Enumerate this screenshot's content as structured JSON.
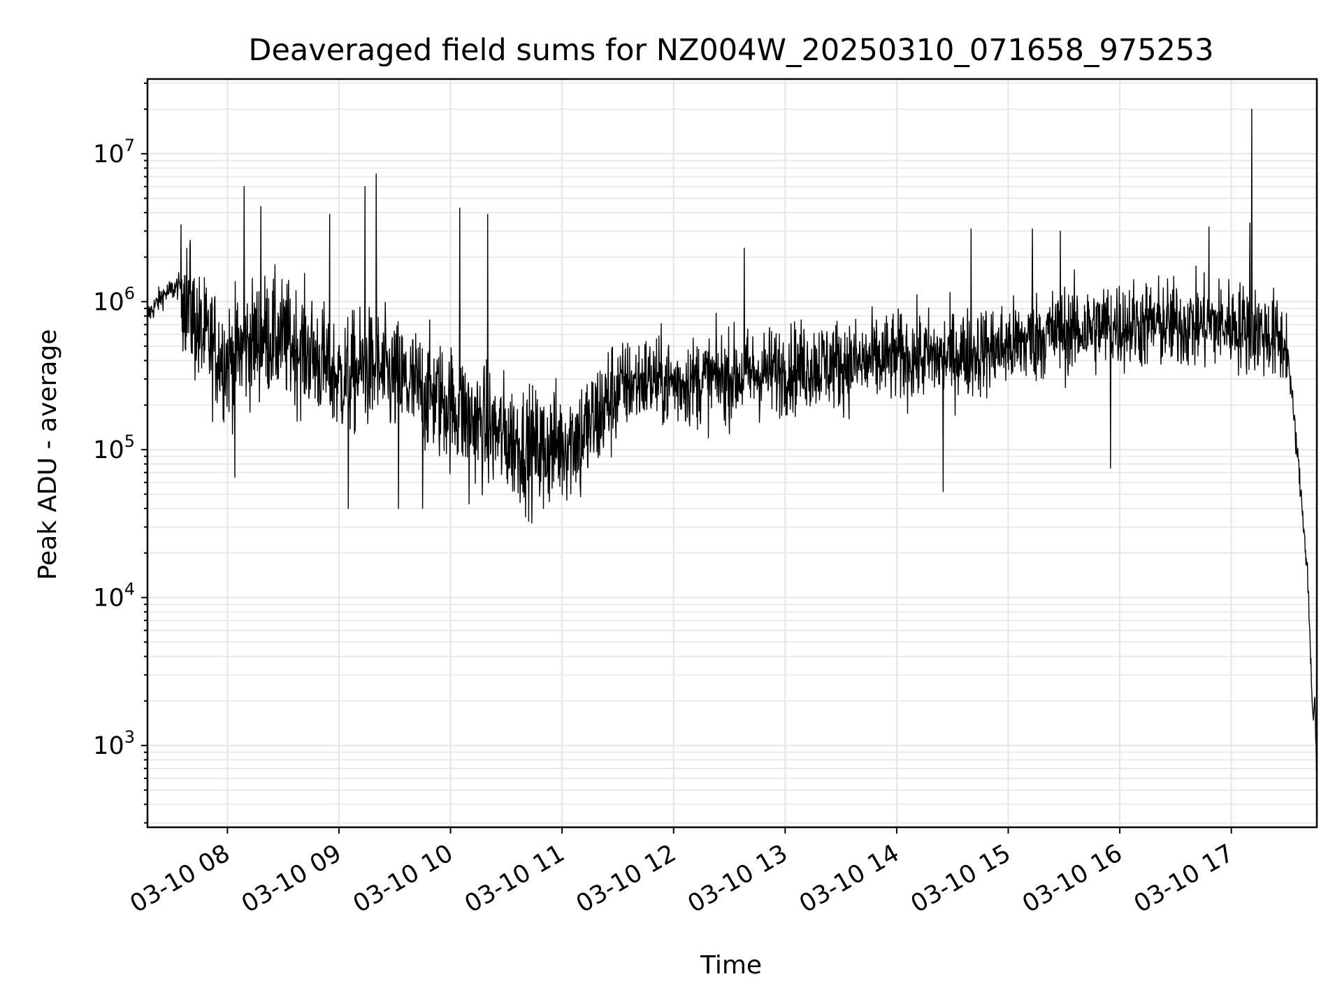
{
  "chart_data": {
    "type": "line",
    "title": "Deaveraged field sums for NZ004W_20250310_071658_975253",
    "xlabel": "Time",
    "ylabel": "Peak ADU - average",
    "yscale": "log",
    "grid": true,
    "legend": "none",
    "line_color": "#000000",
    "grid_color": "#e6e6e6",
    "x_range": [
      "03-10 07:17",
      "03-10 17:46"
    ],
    "ylim": [
      280,
      32000000
    ],
    "x_ticks": [
      "03-10 08",
      "03-10 09",
      "03-10 10",
      "03-10 11",
      "03-10 12",
      "03-10 13",
      "03-10 14",
      "03-10 15",
      "03-10 16",
      "03-10 17"
    ],
    "y_ticks": [
      {
        "base": "10",
        "exp": "3"
      },
      {
        "base": "10",
        "exp": "4"
      },
      {
        "base": "10",
        "exp": "5"
      },
      {
        "base": "10",
        "exp": "6"
      },
      {
        "base": "10",
        "exp": "7"
      }
    ],
    "series": [
      {
        "x": [
          "07:17",
          "07:25",
          "07:35",
          "07:45",
          "08:00",
          "08:10",
          "08:20",
          "08:30",
          "08:45",
          "09:00",
          "09:15",
          "09:30",
          "09:45",
          "10:00",
          "10:15",
          "10:30",
          "10:45",
          "11:00",
          "11:15",
          "11:30",
          "11:45",
          "12:00",
          "12:20",
          "12:40",
          "13:00",
          "13:20",
          "13:40",
          "14:00",
          "14:20",
          "14:40",
          "15:00",
          "15:20",
          "15:40",
          "16:00",
          "16:20",
          "16:40",
          "17:00",
          "17:10",
          "17:20",
          "17:30",
          "17:33",
          "17:36",
          "17:39",
          "17:41",
          "17:43",
          "17:44",
          "17:45",
          "17:46"
        ],
        "y": [
          800000,
          1100000,
          1300000,
          600000,
          400000,
          500000,
          600000,
          550000,
          450000,
          300000,
          350000,
          300000,
          250000,
          200000,
          150000,
          120000,
          100000,
          110000,
          140000,
          260000,
          300000,
          280000,
          300000,
          320000,
          350000,
          380000,
          380000,
          420000,
          420000,
          450000,
          500000,
          600000,
          650000,
          700000,
          700000,
          700000,
          700000,
          650000,
          600000,
          500000,
          200000,
          80000,
          30000,
          15000,
          3000,
          1500,
          2000,
          500
        ]
      }
    ],
    "peaks": [
      {
        "x": "07:40",
        "y": 2600000
      },
      {
        "x": "08:09",
        "y": 6000000
      },
      {
        "x": "08:18",
        "y": 4400000
      },
      {
        "x": "08:55",
        "y": 3900000
      },
      {
        "x": "09:14",
        "y": 6000000
      },
      {
        "x": "09:20",
        "y": 7300000
      },
      {
        "x": "10:05",
        "y": 4300000
      },
      {
        "x": "10:20",
        "y": 3900000
      },
      {
        "x": "12:38",
        "y": 2300000
      },
      {
        "x": "14:40",
        "y": 3100000
      },
      {
        "x": "15:13",
        "y": 3100000
      },
      {
        "x": "15:28",
        "y": 3000000
      },
      {
        "x": "16:48",
        "y": 3200000
      },
      {
        "x": "17:10",
        "y": 3400000
      },
      {
        "x": "17:11",
        "y": 20000000
      }
    ],
    "dips": [
      {
        "x": "09:05",
        "y": 40000
      },
      {
        "x": "09:32",
        "y": 40000
      },
      {
        "x": "09:45",
        "y": 40000
      },
      {
        "x": "10:10",
        "y": 43000
      },
      {
        "x": "10:50",
        "y": 40000
      },
      {
        "x": "11:10",
        "y": 48000
      },
      {
        "x": "14:25",
        "y": 52000
      },
      {
        "x": "15:55",
        "y": 75000
      },
      {
        "x": "08:04",
        "y": 65000
      }
    ]
  }
}
